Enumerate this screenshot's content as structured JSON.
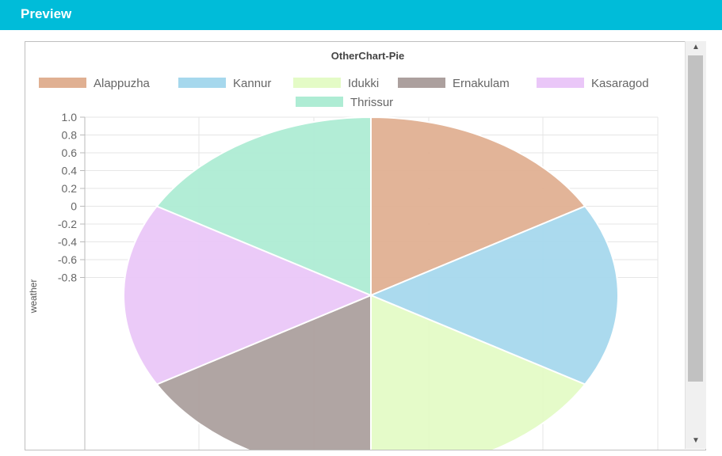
{
  "header": {
    "title": "Preview"
  },
  "scrollbar": {
    "up_icon": "▲",
    "down_icon": "▼",
    "thumb_fraction": 0.82
  },
  "chart_data": {
    "type": "pie",
    "title": "OtherChart-Pie",
    "ylabel": "weather",
    "xlabel": "",
    "yticks": [
      "1.0",
      "0.8",
      "0.6",
      "0.4",
      "0.2",
      "0",
      "-0.2",
      "-0.4",
      "-0.6",
      "-0.8"
    ],
    "ylim": [
      -1,
      1
    ],
    "grid": true,
    "legend": "top",
    "categories": [
      "Alappuzha",
      "Kannur",
      "Idukki",
      "Ernakulam",
      "Kasaragod",
      "Thrissur"
    ],
    "values": [
      16.7,
      16.7,
      16.7,
      16.7,
      16.7,
      16.7
    ],
    "colors": [
      "#e0b092",
      "#a6d8ed",
      "#e4fbc6",
      "#aca09e",
      "#eac7f8",
      "#aeecd4"
    ]
  }
}
